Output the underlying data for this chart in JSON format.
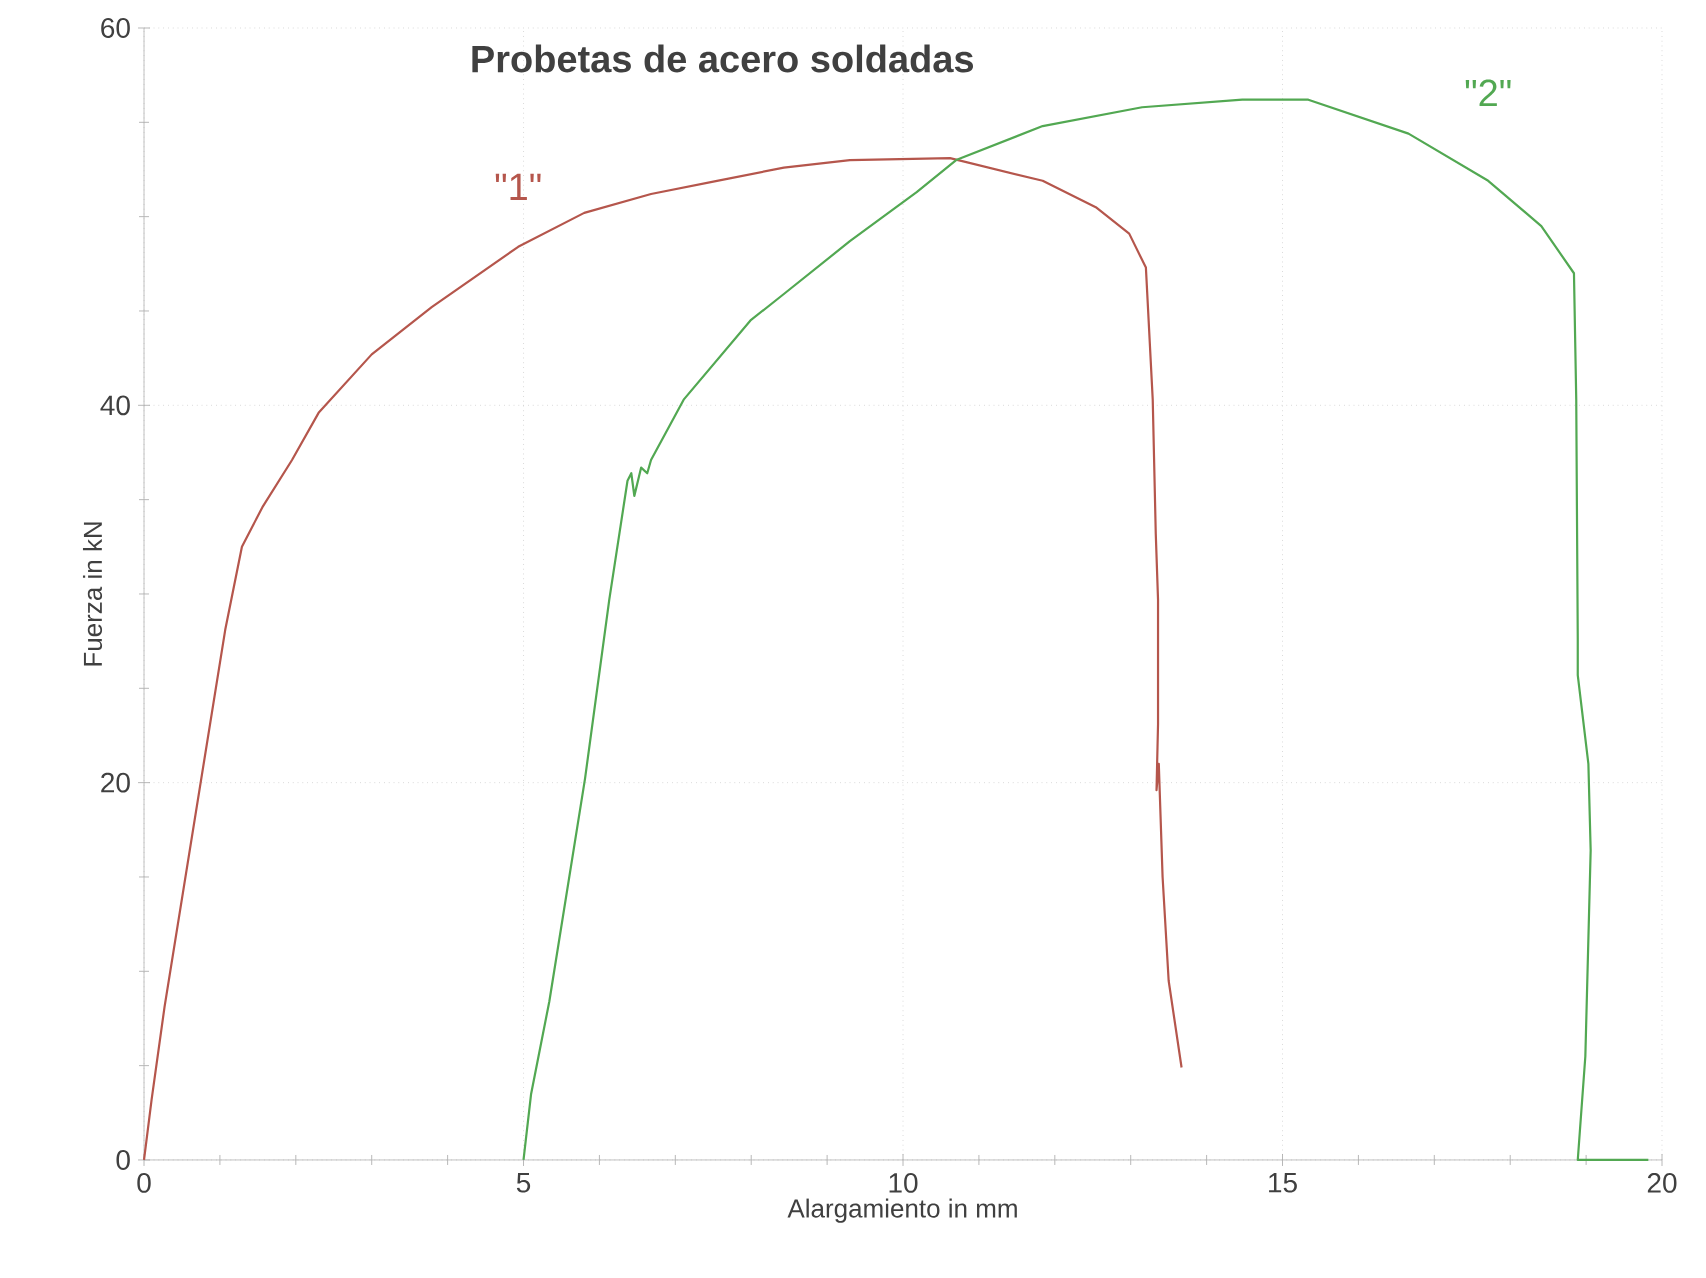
{
  "chart_data": {
    "type": "line",
    "title": "Probetas de acero soldadas",
    "xlabel": "Alargamiento in mm",
    "ylabel": "Fuerza in kN",
    "xlim": [
      0,
      20
    ],
    "ylim": [
      0,
      60
    ],
    "xticks": [
      0,
      5,
      10,
      15,
      20
    ],
    "yticks": [
      0,
      20,
      40,
      60
    ],
    "grid": true,
    "series": [
      {
        "name": "\"1\"",
        "color": "#b5564c",
        "x": [
          0,
          0.1,
          0.27,
          1.07,
          1.29,
          1.56,
          1.95,
          2.3,
          3.0,
          3.79,
          4.93,
          5.8,
          6.68,
          7.55,
          8.43,
          9.3,
          10.62,
          11.84,
          12.54,
          12.98,
          13.2,
          13.29,
          13.33,
          13.36,
          13.36,
          13.34,
          13.37,
          13.42,
          13.5,
          13.67
        ],
        "values": [
          0,
          3.2,
          8.1,
          28.1,
          32.5,
          34.6,
          37.1,
          39.6,
          42.7,
          45.2,
          48.4,
          50.2,
          51.2,
          51.9,
          52.6,
          53.0,
          53.1,
          51.9,
          50.5,
          49.1,
          47.3,
          40.3,
          33.2,
          29.7,
          23.1,
          19.6,
          21.0,
          15.0,
          9.5,
          4.9
        ]
      },
      {
        "name": "\"2\"",
        "color": "#52a852",
        "x": [
          5.0,
          5.1,
          5.34,
          5.81,
          6.13,
          6.37,
          6.42,
          6.46,
          6.55,
          6.63,
          6.68,
          7.11,
          7.99,
          8.43,
          9.3,
          10.18,
          10.7,
          11.84,
          13.15,
          14.47,
          15.34,
          16.66,
          17.71,
          18.41,
          18.84,
          18.87,
          18.89,
          18.89,
          19.03,
          19.06,
          18.99,
          18.89,
          19.82
        ],
        "values": [
          0,
          3.5,
          8.4,
          20.2,
          29.7,
          36.0,
          36.4,
          35.2,
          36.7,
          36.4,
          37.1,
          40.3,
          44.5,
          45.9,
          48.7,
          51.3,
          53.0,
          54.8,
          55.8,
          56.2,
          56.2,
          54.4,
          51.9,
          49.5,
          47.0,
          40.3,
          27.6,
          25.7,
          21.0,
          16.4,
          5.5,
          0,
          0
        ]
      }
    ]
  }
}
